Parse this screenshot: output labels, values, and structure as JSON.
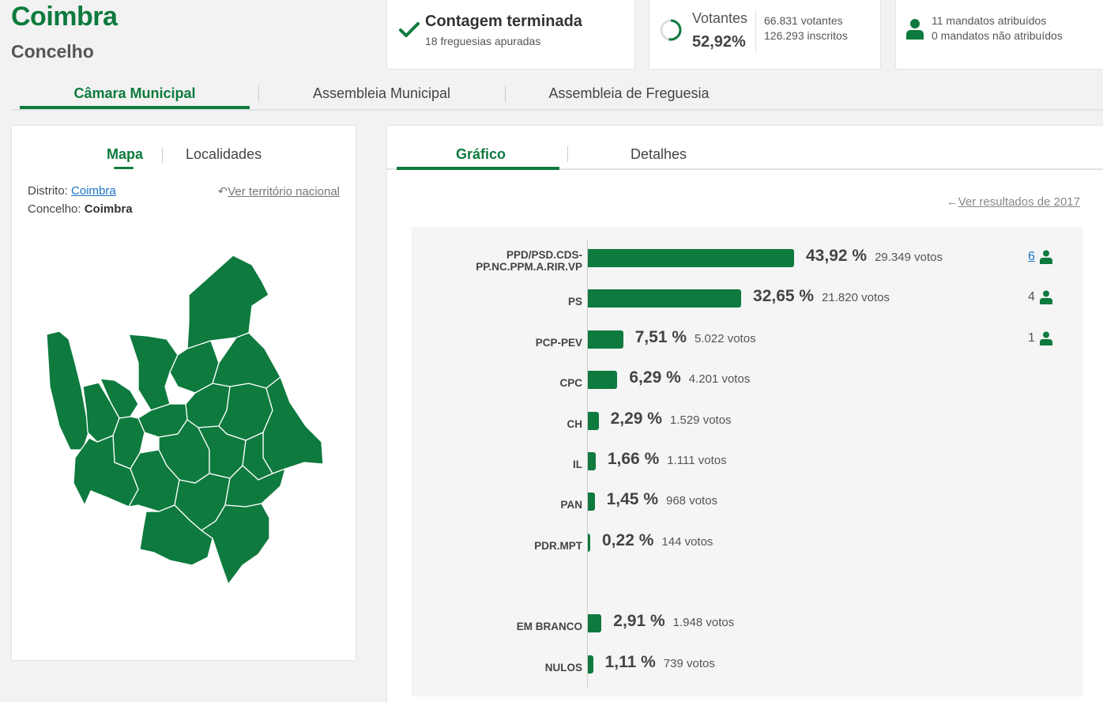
{
  "header": {
    "title": "Coimbra",
    "subtitle": "Concelho"
  },
  "stats": {
    "status": {
      "title": "Contagem terminada",
      "detail": "18 freguesias apuradas"
    },
    "turnout": {
      "label": "Votantes",
      "percent": "52,92%",
      "voters": "66.831 votantes",
      "registered": "126.293 inscritos",
      "fraction": 0.5292
    },
    "mandates": {
      "assigned": "11 mandatos atribuídos",
      "unassigned": "0 mandatos não atribuídos"
    }
  },
  "top_tabs": [
    {
      "label": "Câmara Municipal",
      "active": true
    },
    {
      "label": "Assembleia Municipal",
      "active": false
    },
    {
      "label": "Assembleia de Freguesia",
      "active": false
    }
  ],
  "left": {
    "tabs": [
      {
        "label": "Mapa",
        "active": true
      },
      {
        "label": "Localidades",
        "active": false
      }
    ],
    "district_label": "Distrito:",
    "district_value": "Coimbra",
    "county_label": "Concelho:",
    "county_value": "Coimbra",
    "national_link": "Ver território nacional"
  },
  "right": {
    "tabs": [
      {
        "label": "Gráfico",
        "active": true
      },
      {
        "label": "Detalhes",
        "active": false
      }
    ],
    "previous_link": "Ver resultados de 2017"
  },
  "chart_data": {
    "type": "bar",
    "orientation": "horizontal",
    "categories": [
      "PPD/PSD.CDS-PP.NC.PPM.A.RIR.VP",
      "PS",
      "PCP-PEV",
      "CPC",
      "CH",
      "IL",
      "PAN",
      "PDR.MPT",
      "EM BRANCO",
      "NULOS"
    ],
    "labels": [
      [
        "PPD/PSD.CDS-",
        "PP.NC.PPM.A.RIR.VP"
      ],
      [
        "PS"
      ],
      [
        "PCP-PEV"
      ],
      [
        "CPC"
      ],
      [
        "CH"
      ],
      [
        "IL"
      ],
      [
        "PAN"
      ],
      [
        "PDR.MPT"
      ],
      [
        "EM BRANCO"
      ],
      [
        "NULOS"
      ]
    ],
    "values": [
      43.92,
      32.65,
      7.51,
      6.29,
      2.29,
      1.66,
      1.45,
      0.22,
      2.91,
      1.11
    ],
    "percent_labels": [
      "43,92 %",
      "32,65 %",
      "7,51 %",
      "6,29 %",
      "2,29 %",
      "1,66 %",
      "1,45 %",
      "0,22 %",
      "2,91 %",
      "1,11 %"
    ],
    "votes_labels": [
      "29.349 votos",
      "21.820 votos",
      "5.022 votos",
      "4.201 votos",
      "1.529 votos",
      "1.111 votos",
      "968 votos",
      "144 votos",
      "1.948 votos",
      "739 votos"
    ],
    "seats": [
      "6",
      "4",
      "1",
      "",
      "",
      "",
      "",
      "",
      "",
      ""
    ],
    "xlim": [
      0,
      60
    ],
    "colors": {
      "bar": "#0e7a3e"
    }
  }
}
